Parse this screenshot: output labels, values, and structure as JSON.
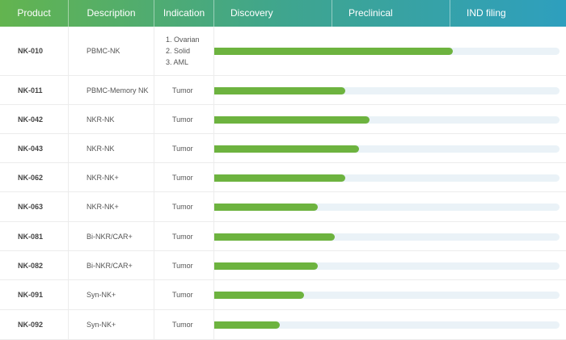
{
  "header": {
    "product": "Product",
    "description": "Description",
    "indication": "Indication",
    "discovery": "Discovery",
    "preclinical": "Preclinical",
    "ind_filing": "IND filing"
  },
  "colors": {
    "bar": "#6db33f",
    "track": "#eaf2f7",
    "header_start": "#63b44f",
    "header_end": "#2e9fbe"
  },
  "rows": [
    {
      "product": "NK-010",
      "description": "PBMC-NK",
      "indication_list": [
        "1. Ovarian",
        "2. Solid",
        "3. AML"
      ],
      "progress": 0.69
    },
    {
      "product": "NK-011",
      "description": "PBMC-Memory NK",
      "indication": "Tumor",
      "progress": 0.38
    },
    {
      "product": "NK-042",
      "description": "NKR-NK",
      "indication": "Tumor",
      "progress": 0.45
    },
    {
      "product": "NK-043",
      "description": "NKR-NK",
      "indication": "Tumor",
      "progress": 0.42
    },
    {
      "product": "NK-062",
      "description": "NKR-NK+",
      "indication": "Tumor",
      "progress": 0.38
    },
    {
      "product": "NK-063",
      "description": "NKR-NK+",
      "indication": "Tumor",
      "progress": 0.3
    },
    {
      "product": "NK-081",
      "description": "Bi-NKR/CAR+",
      "indication": "Tumor",
      "progress": 0.35
    },
    {
      "product": "NK-082",
      "description": "Bi-NKR/CAR+",
      "indication": "Tumor",
      "progress": 0.3
    },
    {
      "product": "NK-091",
      "description": "Syn-NK+",
      "indication": "Tumor",
      "progress": 0.26
    },
    {
      "product": "NK-092",
      "description": "Syn-NK+",
      "indication": "Tumor",
      "progress": 0.19
    }
  ]
}
